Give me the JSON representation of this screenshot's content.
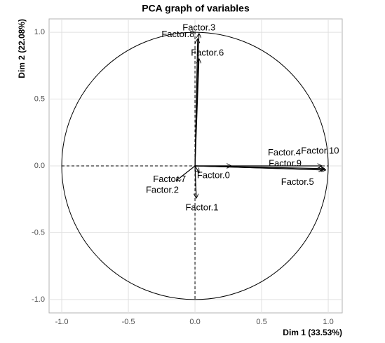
{
  "chart_data": {
    "type": "pca_variables",
    "title": "PCA graph of variables",
    "xlabel": "Dim 1 (33.53%)",
    "ylabel": "Dim 2 (22.08%)",
    "variables": [
      "Factor.3",
      "Factor.8",
      "Factor.6",
      "Factor.4",
      "Factor.10",
      "Factor.9",
      "Factor.5",
      "Factor.0",
      "Factor.7",
      "Factor.2",
      "Factor.1"
    ],
    "x": [
      0.03,
      0.02,
      0.03,
      0.96,
      0.97,
      0.95,
      0.98,
      0.27,
      0.03,
      -0.14,
      0.01
    ],
    "y": [
      0.99,
      0.95,
      0.8,
      -0.03,
      -0.02,
      0.0,
      -0.03,
      0.0,
      -0.05,
      -0.11,
      -0.24
    ],
    "xlim": [
      -1.095,
      1.105
    ],
    "ylim": [
      -1.1,
      1.1
    ],
    "xticks": [
      {
        "value": -1,
        "label": "-1.0"
      },
      -0.5,
      {
        "value": 0,
        "label": "0.0"
      },
      0.5,
      {
        "value": 1,
        "label": "1.0"
      }
    ],
    "yticks": [
      {
        "value": -1,
        "label": "-1.0"
      },
      -0.5,
      {
        "value": 0,
        "label": "0.0"
      },
      0.5,
      {
        "value": 1,
        "label": "1.0"
      }
    ],
    "grid": true,
    "color": "#000000"
  }
}
